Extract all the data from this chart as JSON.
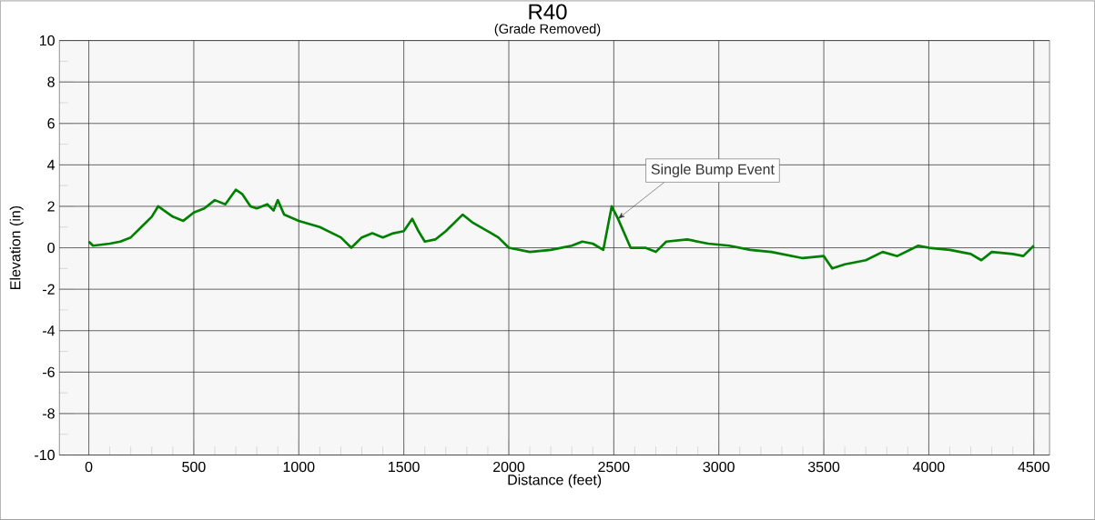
{
  "chart_data": {
    "type": "line",
    "title": "R40",
    "subtitle": "(Grade Removed)",
    "xlabel": "Distance (feet)",
    "ylabel": "Elevation (in)",
    "x": [
      0,
      20,
      100,
      150,
      200,
      250,
      300,
      330,
      400,
      450,
      500,
      550,
      600,
      650,
      700,
      730,
      770,
      800,
      850,
      880,
      900,
      930,
      1000,
      1100,
      1200,
      1250,
      1300,
      1350,
      1400,
      1450,
      1500,
      1540,
      1570,
      1600,
      1650,
      1700,
      1780,
      1830,
      1900,
      1950,
      2000,
      2050,
      2100,
      2200,
      2300,
      2350,
      2400,
      2450,
      2490,
      2520,
      2580,
      2650,
      2700,
      2750,
      2850,
      2950,
      3050,
      3150,
      3250,
      3400,
      3500,
      3540,
      3600,
      3700,
      3780,
      3850,
      3950,
      4000,
      4100,
      4200,
      4250,
      4300,
      4400,
      4450,
      4500
    ],
    "series": [
      {
        "color": "#008000",
        "values": [
          0.3,
          0.1,
          0.2,
          0.3,
          0.5,
          1.0,
          1.5,
          2.0,
          1.5,
          1.3,
          1.7,
          1.9,
          2.3,
          2.1,
          2.8,
          2.6,
          2.0,
          1.9,
          2.1,
          1.8,
          2.3,
          1.6,
          1.3,
          1.0,
          0.5,
          0.0,
          0.5,
          0.7,
          0.5,
          0.7,
          0.8,
          1.4,
          0.8,
          0.3,
          0.4,
          0.8,
          1.6,
          1.2,
          0.8,
          0.5,
          0.0,
          -0.1,
          -0.2,
          -0.1,
          0.1,
          0.3,
          0.2,
          -0.1,
          2.0,
          1.4,
          0.0,
          0.0,
          -0.2,
          0.3,
          0.4,
          0.2,
          0.1,
          -0.1,
          -0.2,
          -0.5,
          -0.4,
          -1.0,
          -0.8,
          -0.6,
          -0.2,
          -0.4,
          0.1,
          0.0,
          -0.1,
          -0.3,
          -0.6,
          -0.2,
          -0.3,
          -0.4,
          0.1
        ]
      }
    ],
    "xlim": [
      -140,
      4575
    ],
    "ylim": [
      -10,
      10
    ],
    "xticks": [
      0,
      500,
      1000,
      1500,
      2000,
      2500,
      3000,
      3500,
      4000,
      4500
    ],
    "yticks": [
      -10,
      -8,
      -6,
      -4,
      -2,
      0,
      2,
      4,
      6,
      8,
      10
    ],
    "grid": true,
    "annotations": [
      {
        "text": "Single Bump Event",
        "x": 2520,
        "y": 1.4
      }
    ]
  }
}
